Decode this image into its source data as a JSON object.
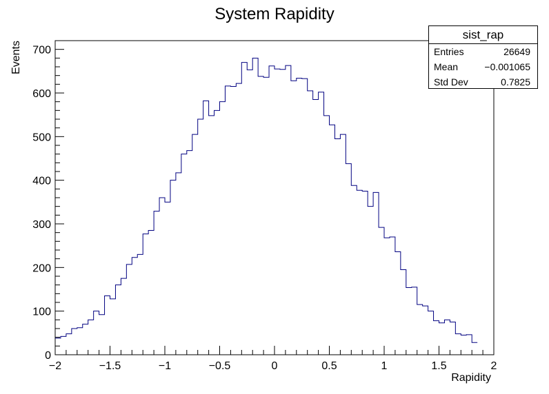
{
  "chart_data": {
    "type": "histogram",
    "title": "System Rapidity",
    "xlabel": "Rapidity",
    "ylabel": "Events",
    "xlim": [
      -2,
      2
    ],
    "ylim": [
      0,
      720
    ],
    "bin_width": 0.05,
    "x_ticks": [
      -2,
      -1.5,
      -1,
      -0.5,
      0,
      0.5,
      1,
      1.5,
      2
    ],
    "x_tick_labels": [
      "−2",
      "−1.5",
      "−1",
      "−0.5",
      "0",
      "0.5",
      "1",
      "1.5",
      "2"
    ],
    "y_ticks": [
      0,
      100,
      200,
      300,
      400,
      500,
      600,
      700
    ],
    "y_tick_labels": [
      "0",
      "100",
      "200",
      "300",
      "400",
      "500",
      "600",
      "700"
    ],
    "line_color": "#000080",
    "values": [
      38,
      42,
      48,
      60,
      62,
      70,
      80,
      100,
      92,
      135,
      128,
      160,
      175,
      207,
      223,
      230,
      277,
      285,
      329,
      360,
      350,
      400,
      417,
      460,
      468,
      505,
      540,
      582,
      548,
      560,
      580,
      616,
      615,
      622,
      670,
      653,
      680,
      638,
      636,
      662,
      655,
      654,
      663,
      628,
      634,
      633,
      605,
      585,
      602,
      548,
      527,
      495,
      505,
      438,
      388,
      377,
      375,
      340,
      372,
      292,
      268,
      270,
      236,
      195,
      154,
      155,
      115,
      112,
      100,
      78,
      73,
      80,
      75,
      48,
      45,
      46,
      28
    ]
  },
  "stats": {
    "name": "sist_rap",
    "entries_label": "Entries",
    "entries_value": "26649",
    "mean_label": "Mean",
    "mean_value": "−0.001065",
    "stddev_label": "Std Dev",
    "stddev_value": "0.7825"
  }
}
